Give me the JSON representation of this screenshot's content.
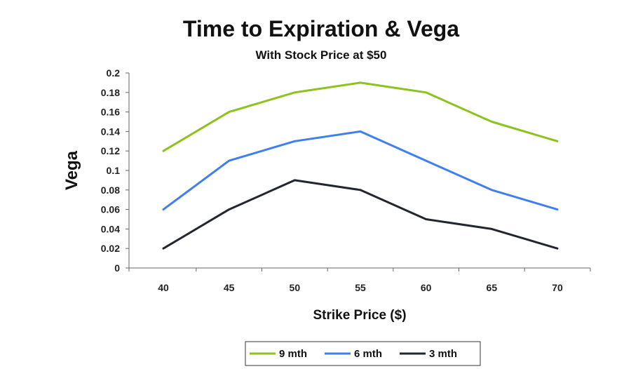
{
  "chart_data": {
    "type": "line",
    "title": "Time to Expiration & Vega",
    "subtitle": "With Stock Price at $50",
    "xlabel": "Strike Price ($)",
    "ylabel": "Vega",
    "categories": [
      "40",
      "45",
      "50",
      "55",
      "60",
      "65",
      "70"
    ],
    "y_ticks": [
      "0",
      "0.02",
      "0.04",
      "0.06",
      "0.08",
      "0.1",
      "0.12",
      "0.14",
      "0.16",
      "0.18",
      "0.2"
    ],
    "ylim": [
      0,
      0.2
    ],
    "grid": false,
    "legend_position": "bottom",
    "series": [
      {
        "name": "9 mth",
        "color": "#8dc21f",
        "values": [
          0.12,
          0.16,
          0.18,
          0.19,
          0.18,
          0.15,
          0.13
        ]
      },
      {
        "name": "6 mth",
        "color": "#3f7fef",
        "values": [
          0.06,
          0.11,
          0.13,
          0.14,
          0.11,
          0.08,
          0.06
        ]
      },
      {
        "name": "3 mth",
        "color": "#22262e",
        "values": [
          0.02,
          0.06,
          0.09,
          0.08,
          0.05,
          0.04,
          0.02
        ]
      }
    ]
  }
}
